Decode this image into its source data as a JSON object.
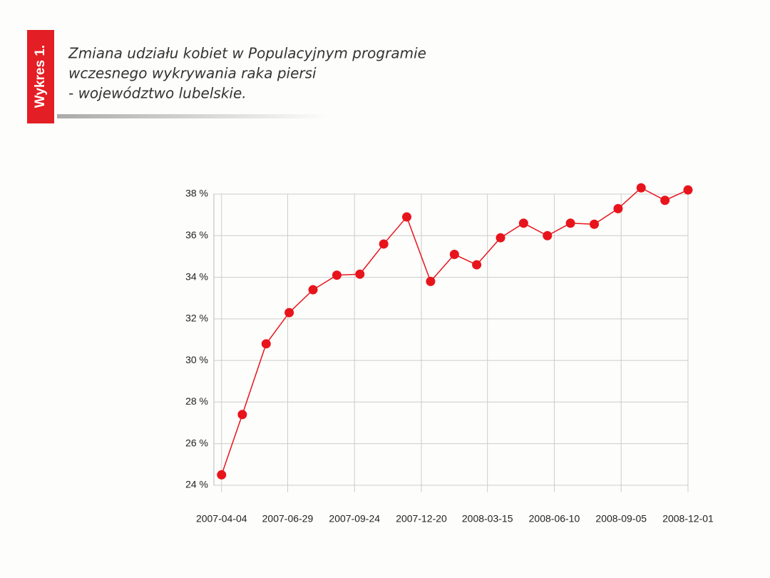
{
  "chart_data": {
    "type": "line",
    "badge": "Wykres 1.",
    "title": [
      "Zmiana udziału kobiet w Populacyjnym programie",
      "wczesnego wykrywania raka piersi",
      "- województwo lubelskie."
    ],
    "x": [
      "2007-04-04",
      "2007-05-01",
      "2007-06-01",
      "2007-07-01",
      "2007-08-01",
      "2007-09-01",
      "2007-10-01",
      "2007-11-01",
      "2007-12-01",
      "2008-01-01",
      "2008-02-01",
      "2008-03-01",
      "2008-04-01",
      "2008-05-01",
      "2008-06-01",
      "2008-07-01",
      "2008-08-01",
      "2008-09-01",
      "2008-10-01",
      "2008-11-01",
      "2008-12-01"
    ],
    "series": [
      {
        "color": "#e8141c",
        "values": [
          24.5,
          27.4,
          30.8,
          32.3,
          33.4,
          34.1,
          34.15,
          35.6,
          36.9,
          33.8,
          35.1,
          34.6,
          35.9,
          36.6,
          36.0,
          36.6,
          36.55,
          37.3,
          38.3,
          37.7,
          38.2
        ]
      }
    ],
    "xlim": [
      "2007-03-25",
      "2008-12-01"
    ],
    "xticks": [
      "2007-04-04",
      "2007-06-29",
      "2007-09-24",
      "2007-12-20",
      "2008-03-15",
      "2008-06-10",
      "2008-09-05",
      "2008-12-01"
    ],
    "ylim": [
      24,
      38
    ],
    "yticks": [
      {
        "value": 24,
        "label": "24 %"
      },
      {
        "value": 26,
        "label": "26 %"
      },
      {
        "value": 28,
        "label": "28 %"
      },
      {
        "value": 30,
        "label": "30 %"
      },
      {
        "value": 32,
        "label": "32 %"
      },
      {
        "value": 34,
        "label": "34 %"
      },
      {
        "value": 36,
        "label": "36 %"
      },
      {
        "value": 38,
        "label": "38 %"
      }
    ],
    "grid": true
  }
}
